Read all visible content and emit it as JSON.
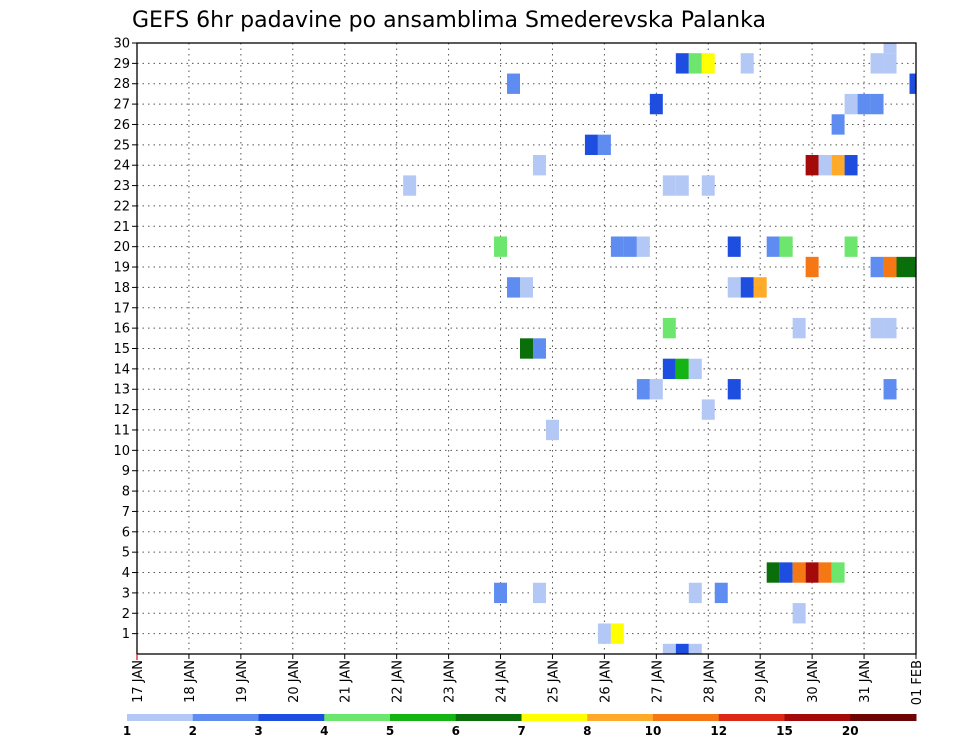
{
  "chart_data": {
    "type": "heatmap",
    "title": "GEFS 6hr padavine po ansamblima Smederevska Palanka",
    "xlabel": "",
    "ylabel": "",
    "x_range": [
      "17 JAN 00Z",
      "01 FEB 00Z"
    ],
    "x_tick_labels": [
      "17 JAN",
      "18 JAN",
      "19 JAN",
      "20 JAN",
      "21 JAN",
      "22 JAN",
      "23 JAN",
      "24 JAN",
      "25 JAN",
      "26 JAN",
      "27 JAN",
      "28 JAN",
      "29 JAN",
      "30 JAN",
      "31 JAN",
      "01 FEB"
    ],
    "y_range": [
      0,
      30
    ],
    "y_tick_labels": [
      "1",
      "2",
      "3",
      "4",
      "5",
      "6",
      "7",
      "8",
      "9",
      "10",
      "11",
      "12",
      "13",
      "14",
      "15",
      "16",
      "17",
      "18",
      "19",
      "20",
      "21",
      "22",
      "23",
      "24",
      "25",
      "26",
      "27",
      "28",
      "29",
      "30"
    ],
    "grid": true,
    "legend": {
      "placement": "bottom",
      "labels": [
        "1",
        "2",
        "3",
        "4",
        "5",
        "6",
        "7",
        "8",
        "10",
        "12",
        "15",
        "20"
      ],
      "colors": [
        "#b4c8f5",
        "#5f8cf0",
        "#1e4ee0",
        "#6ce66c",
        "#14b414",
        "#0a6e0a",
        "#ffff00",
        "#ffaa28",
        "#f57814",
        "#dc2814",
        "#a50a0a",
        "#6e0505"
      ]
    },
    "series": [
      {
        "member": 30,
        "cells": [
          {
            "date": "31 JAN 12Z",
            "class": 1
          }
        ]
      },
      {
        "member": 29,
        "cells": [
          {
            "date": "27 JAN 12Z",
            "class": 3
          },
          {
            "date": "27 JAN 18Z",
            "class": 4
          },
          {
            "date": "28 JAN 00Z",
            "class": 7
          },
          {
            "date": "28 JAN 18Z",
            "class": 1
          },
          {
            "date": "31 JAN 06Z",
            "class": 1
          },
          {
            "date": "31 JAN 12Z",
            "class": 1
          }
        ]
      },
      {
        "member": 28,
        "cells": [
          {
            "date": "24 JAN 06Z",
            "class": 2
          },
          {
            "date": "01 FEB 00Z",
            "class": 3
          }
        ]
      },
      {
        "member": 27,
        "cells": [
          {
            "date": "27 JAN 00Z",
            "class": 3
          },
          {
            "date": "30 JAN 18Z",
            "class": 1
          },
          {
            "date": "31 JAN 00Z",
            "class": 2
          },
          {
            "date": "31 JAN 06Z",
            "class": 2
          }
        ]
      },
      {
        "member": 26,
        "cells": [
          {
            "date": "30 JAN 12Z",
            "class": 2
          }
        ]
      },
      {
        "member": 25,
        "cells": [
          {
            "date": "25 JAN 18Z",
            "class": 3
          },
          {
            "date": "26 JAN 00Z",
            "class": 2
          }
        ]
      },
      {
        "member": 24,
        "cells": [
          {
            "date": "24 JAN 18Z",
            "class": 1
          },
          {
            "date": "30 JAN 00Z",
            "class": 11
          },
          {
            "date": "30 JAN 06Z",
            "class": 1
          },
          {
            "date": "30 JAN 12Z",
            "class": 8
          },
          {
            "date": "30 JAN 18Z",
            "class": 3
          }
        ]
      },
      {
        "member": 23,
        "cells": [
          {
            "date": "22 JAN 06Z",
            "class": 1
          },
          {
            "date": "27 JAN 06Z",
            "class": 1
          },
          {
            "date": "27 JAN 12Z",
            "class": 1
          },
          {
            "date": "28 JAN 00Z",
            "class": 1
          }
        ]
      },
      {
        "member": 20,
        "cells": [
          {
            "date": "24 JAN 00Z",
            "class": 4
          },
          {
            "date": "26 JAN 06Z",
            "class": 2
          },
          {
            "date": "26 JAN 12Z",
            "class": 2
          },
          {
            "date": "26 JAN 18Z",
            "class": 1
          },
          {
            "date": "28 JAN 12Z",
            "class": 3
          },
          {
            "date": "29 JAN 06Z",
            "class": 2
          },
          {
            "date": "29 JAN 12Z",
            "class": 4
          },
          {
            "date": "30 JAN 18Z",
            "class": 4
          }
        ]
      },
      {
        "member": 19,
        "cells": [
          {
            "date": "30 JAN 00Z",
            "class": 9
          },
          {
            "date": "31 JAN 06Z",
            "class": 2
          },
          {
            "date": "31 JAN 12Z",
            "class": 9
          },
          {
            "date": "31 JAN 18Z",
            "class": 6
          },
          {
            "date": "01 FEB 00Z",
            "class": 6
          }
        ]
      },
      {
        "member": 18,
        "cells": [
          {
            "date": "24 JAN 06Z",
            "class": 2
          },
          {
            "date": "24 JAN 12Z",
            "class": 1
          },
          {
            "date": "28 JAN 12Z",
            "class": 1
          },
          {
            "date": "28 JAN 18Z",
            "class": 3
          },
          {
            "date": "29 JAN 00Z",
            "class": 8
          }
        ]
      },
      {
        "member": 16,
        "cells": [
          {
            "date": "27 JAN 06Z",
            "class": 4
          },
          {
            "date": "29 JAN 18Z",
            "class": 1
          },
          {
            "date": "31 JAN 06Z",
            "class": 1
          },
          {
            "date": "31 JAN 12Z",
            "class": 1
          }
        ]
      },
      {
        "member": 15,
        "cells": [
          {
            "date": "24 JAN 12Z",
            "class": 6
          },
          {
            "date": "24 JAN 18Z",
            "class": 2
          }
        ]
      },
      {
        "member": 14,
        "cells": [
          {
            "date": "27 JAN 06Z",
            "class": 3
          },
          {
            "date": "27 JAN 12Z",
            "class": 5
          },
          {
            "date": "27 JAN 18Z",
            "class": 1
          }
        ]
      },
      {
        "member": 13,
        "cells": [
          {
            "date": "26 JAN 18Z",
            "class": 2
          },
          {
            "date": "27 JAN 00Z",
            "class": 1
          },
          {
            "date": "28 JAN 12Z",
            "class": 3
          },
          {
            "date": "31 JAN 12Z",
            "class": 2
          }
        ]
      },
      {
        "member": 12,
        "cells": [
          {
            "date": "28 JAN 00Z",
            "class": 1
          }
        ]
      },
      {
        "member": 11,
        "cells": [
          {
            "date": "25 JAN 00Z",
            "class": 1
          }
        ]
      },
      {
        "member": 4,
        "cells": [
          {
            "date": "29 JAN 06Z",
            "class": 6
          },
          {
            "date": "29 JAN 12Z",
            "class": 3
          },
          {
            "date": "29 JAN 18Z",
            "class": 9
          },
          {
            "date": "30 JAN 00Z",
            "class": 11
          },
          {
            "date": "30 JAN 06Z",
            "class": 9
          },
          {
            "date": "30 JAN 12Z",
            "class": 4
          }
        ]
      },
      {
        "member": 3,
        "cells": [
          {
            "date": "24 JAN 00Z",
            "class": 2
          },
          {
            "date": "24 JAN 18Z",
            "class": 1
          },
          {
            "date": "27 JAN 18Z",
            "class": 1
          },
          {
            "date": "28 JAN 06Z",
            "class": 2
          }
        ]
      },
      {
        "member": 2,
        "cells": [
          {
            "date": "29 JAN 18Z",
            "class": 1
          }
        ]
      },
      {
        "member": 1,
        "cells": [
          {
            "date": "26 JAN 00Z",
            "class": 1
          },
          {
            "date": "26 JAN 06Z",
            "class": 7
          }
        ]
      },
      {
        "member": 0,
        "cells": [
          {
            "date": "27 JAN 06Z",
            "class": 1
          },
          {
            "date": "27 JAN 12Z",
            "class": 3
          },
          {
            "date": "27 JAN 18Z",
            "class": 1
          }
        ]
      }
    ]
  }
}
